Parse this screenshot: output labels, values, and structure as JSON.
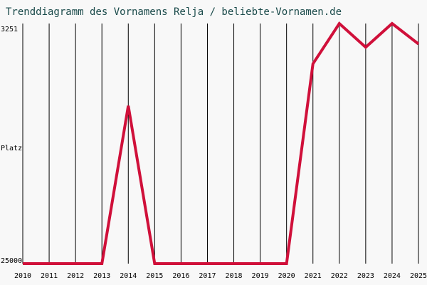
{
  "chart_data": {
    "type": "line",
    "title": "Trenddiagramm des Vornamens Relja / beliebte-Vornamen.de",
    "y_label": "Platz",
    "x": [
      2010,
      2011,
      2012,
      2013,
      2014,
      2015,
      2016,
      2017,
      2018,
      2019,
      2020,
      2021,
      2022,
      2023,
      2024,
      2025
    ],
    "xlim": [
      2010,
      2025
    ],
    "xticks": [
      2010,
      2011,
      2012,
      2013,
      2014,
      2015,
      2016,
      2017,
      2018,
      2019,
      2020,
      2021,
      2022,
      2023,
      2024,
      2025
    ],
    "series": [
      {
        "color": "#d0103a",
        "values": [
          25000,
          25000,
          25000,
          25000,
          10700,
          25000,
          25000,
          25000,
          25000,
          25000,
          25000,
          6900,
          3251,
          5400,
          3251,
          5100
        ]
      }
    ],
    "ylim": [
      25000,
      3251
    ],
    "yticks": [
      3251,
      25000
    ],
    "grid": true
  }
}
